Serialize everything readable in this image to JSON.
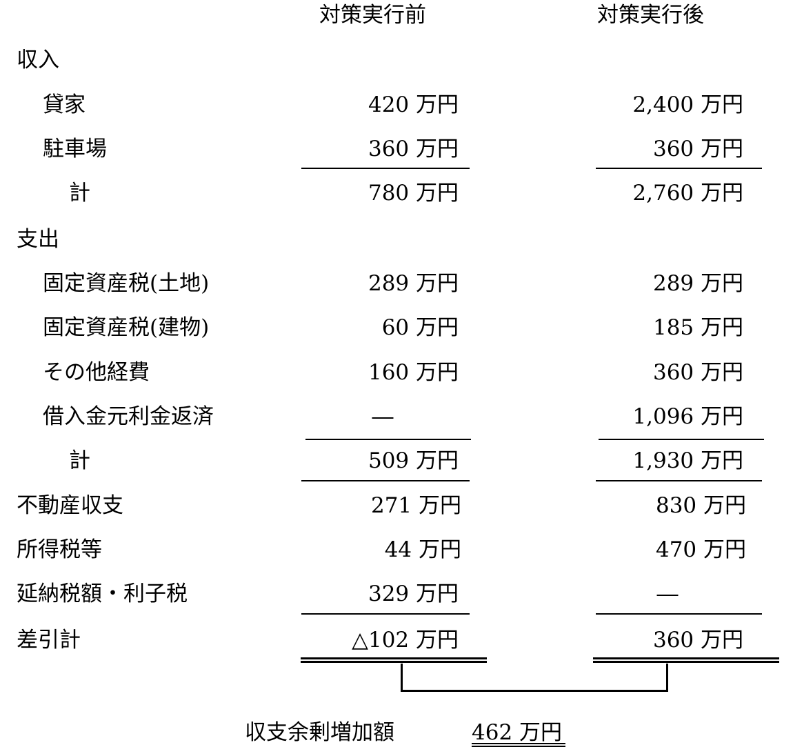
{
  "header": {
    "before": "対策実行前",
    "after": "対策実行後"
  },
  "rows": [
    {
      "label": "収入",
      "indent": 0,
      "before": "",
      "after": ""
    },
    {
      "label": "貸家",
      "indent": 1,
      "before": "420 万円",
      "after": "2,400 万円"
    },
    {
      "label": "駐車場",
      "indent": 1,
      "before": "360 万円",
      "after": "360 万円"
    },
    {
      "label": "計",
      "indent": 2,
      "before": "780 万円",
      "after": "2,760 万円"
    },
    {
      "label": "支出",
      "indent": 0,
      "before": "",
      "after": ""
    },
    {
      "label": "固定資産税(土地)",
      "indent": 1,
      "before": "289 万円",
      "after": "289 万円"
    },
    {
      "label": "固定資産税(建物)",
      "indent": 1,
      "before": "60 万円",
      "after": "185 万円"
    },
    {
      "label": "その他経費",
      "indent": 1,
      "before": "160 万円",
      "after": "360 万円"
    },
    {
      "label": "借入金元利金返済",
      "indent": 1,
      "before": "―",
      "after": "1,096 万円"
    },
    {
      "label": "計",
      "indent": 2,
      "before": "509 万円",
      "after": "1,930 万円"
    },
    {
      "label": "不動産収支",
      "indent": 0,
      "before": "271 万円",
      "after": "830 万円"
    },
    {
      "label": "所得税等",
      "indent": 0,
      "before": "44 万円",
      "after": "470 万円"
    },
    {
      "label": "延納税額・利子税",
      "indent": 0,
      "before": "329 万円",
      "after": "―"
    },
    {
      "label": "差引計",
      "indent": 0,
      "before": "△102 万円",
      "after": "360 万円"
    }
  ],
  "footer": {
    "label": "収支余剰増加額",
    "value": "462 万円"
  }
}
